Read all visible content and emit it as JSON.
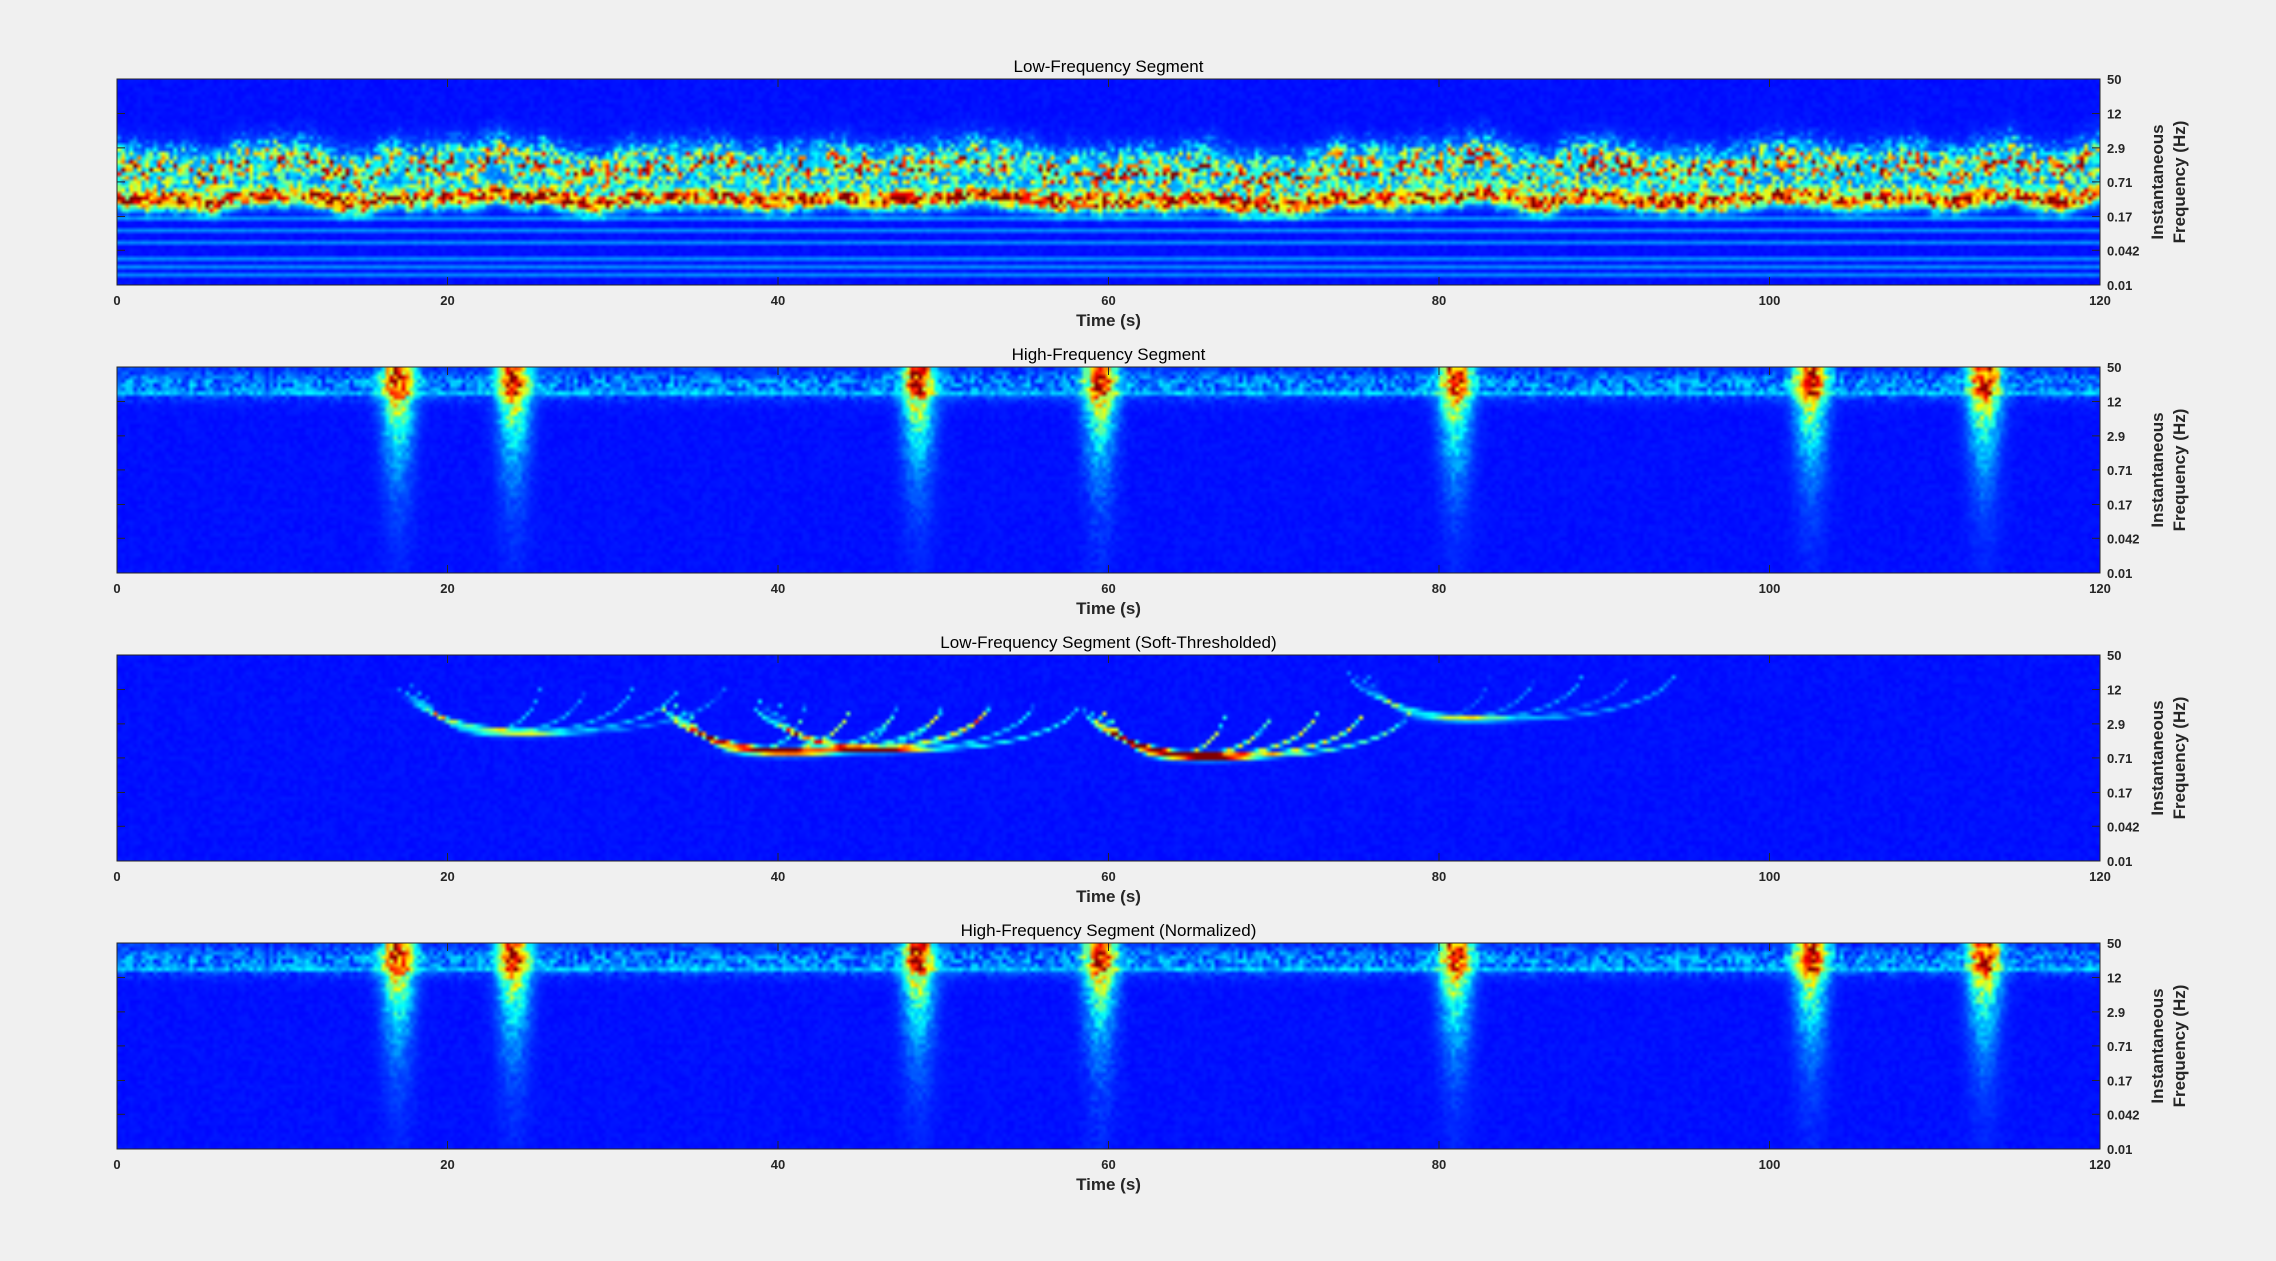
{
  "figure": {
    "background": "#f0f0f0",
    "colormap": [
      "#00008f",
      "#0000ff",
      "#0080ff",
      "#00ffff",
      "#80ff80",
      "#ffff00",
      "#ff8000",
      "#ff0000",
      "#800000"
    ]
  },
  "chart_data": [
    {
      "type": "heatmap",
      "title": "Low-Frequency Segment",
      "xlabel": "Time (s)",
      "ylabel": [
        "Instantaneous",
        "Frequency (Hz)"
      ],
      "xlim": [
        0,
        120
      ],
      "ylim": [
        0.01,
        50
      ],
      "yscale": "log",
      "xticks": [
        0,
        20,
        40,
        60,
        80,
        100,
        120
      ],
      "xtick_labels": [
        "0",
        "20",
        "40",
        "60",
        "80",
        "100",
        "120"
      ],
      "yticks": [
        50,
        12,
        2.9,
        0.71,
        0.17,
        0.042,
        0.01
      ],
      "ytick_labels": [
        "50",
        "12",
        "2.9",
        "0.71",
        "0.17",
        "0.042",
        "0.01"
      ],
      "pattern": "low_dense",
      "energy_band_hz": [
        0.2,
        3.0
      ]
    },
    {
      "type": "heatmap",
      "title": "High-Frequency Segment",
      "xlabel": "Time (s)",
      "ylabel": [
        "Instantaneous",
        "Frequency (Hz)"
      ],
      "xlim": [
        0,
        120
      ],
      "ylim": [
        0.01,
        50
      ],
      "yscale": "log",
      "xticks": [
        0,
        20,
        40,
        60,
        80,
        100,
        120
      ],
      "xtick_labels": [
        "0",
        "20",
        "40",
        "60",
        "80",
        "100",
        "120"
      ],
      "yticks": [
        50,
        12,
        2.9,
        0.71,
        0.17,
        0.042,
        0.01
      ],
      "ytick_labels": [
        "50",
        "12",
        "2.9",
        "0.71",
        "0.17",
        "0.042",
        "0.01"
      ],
      "pattern": "high_bursts",
      "energy_band_hz": [
        10,
        50
      ],
      "burst_times_s": [
        17,
        24,
        48.5,
        59.5,
        81,
        102.5,
        113
      ]
    },
    {
      "type": "heatmap",
      "title": "Low-Frequency Segment (Soft-Thresholded)",
      "xlabel": "Time (s)",
      "ylabel": [
        "Instantaneous",
        "Frequency (Hz)"
      ],
      "xlim": [
        0,
        120
      ],
      "ylim": [
        0.01,
        50
      ],
      "yscale": "log",
      "xticks": [
        0,
        20,
        40,
        60,
        80,
        100,
        120
      ],
      "xtick_labels": [
        "0",
        "20",
        "40",
        "60",
        "80",
        "100",
        "120"
      ],
      "yticks": [
        50,
        12,
        2.9,
        0.71,
        0.17,
        0.042,
        0.01
      ],
      "ytick_labels": [
        "50",
        "12",
        "2.9",
        "0.71",
        "0.17",
        "0.042",
        "0.01"
      ],
      "pattern": "arcs",
      "arc_events": [
        {
          "t": 24.5,
          "f": 2.0,
          "strength": 0.35
        },
        {
          "t": 40.5,
          "f": 0.9,
          "strength": 0.95
        },
        {
          "t": 46,
          "f": 1.0,
          "strength": 0.5
        },
        {
          "t": 66,
          "f": 0.75,
          "strength": 1.0
        },
        {
          "t": 82,
          "f": 3.5,
          "strength": 0.3
        }
      ]
    },
    {
      "type": "heatmap",
      "title": "High-Frequency Segment (Normalized)",
      "xlabel": "Time (s)",
      "ylabel": [
        "Instantaneous",
        "Frequency (Hz)"
      ],
      "xlim": [
        0,
        120
      ],
      "ylim": [
        0.01,
        50
      ],
      "yscale": "log",
      "xticks": [
        0,
        20,
        40,
        60,
        80,
        100,
        120
      ],
      "xtick_labels": [
        "0",
        "20",
        "40",
        "60",
        "80",
        "100",
        "120"
      ],
      "yticks": [
        50,
        12,
        2.9,
        0.71,
        0.17,
        0.042,
        0.01
      ],
      "ytick_labels": [
        "50",
        "12",
        "2.9",
        "0.71",
        "0.17",
        "0.042",
        "0.01"
      ],
      "pattern": "high_bursts",
      "energy_band_hz": [
        10,
        50
      ],
      "burst_times_s": [
        17,
        24,
        48.5,
        59.5,
        81,
        102.5,
        113
      ]
    }
  ]
}
